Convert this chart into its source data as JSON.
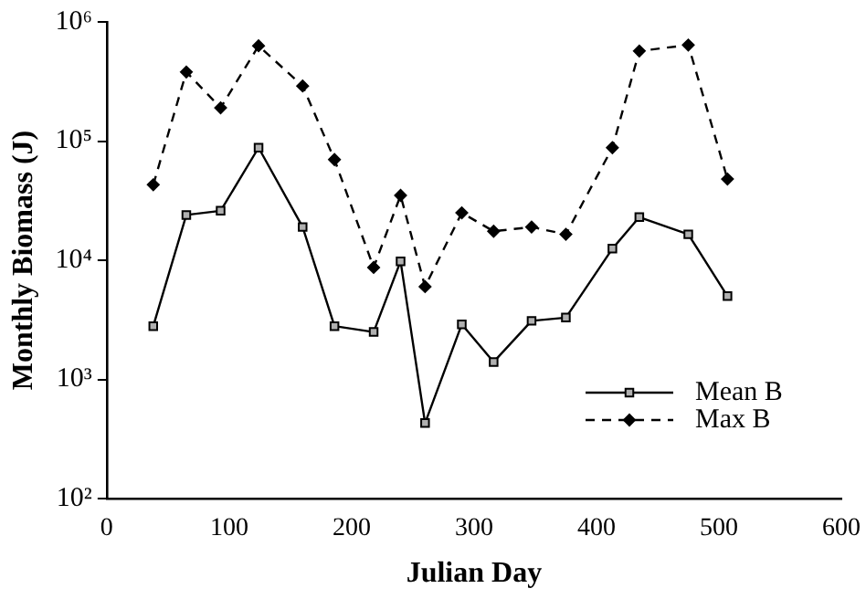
{
  "chart_data": {
    "type": "line",
    "xlabel": "Julian Day",
    "ylabel": "Monthly Biomass (J)",
    "xlim": [
      0,
      600
    ],
    "xticks": [
      0,
      100,
      200,
      300,
      400,
      500,
      600
    ],
    "ylim": [
      100,
      1000000
    ],
    "yticks": [
      {
        "value": 100,
        "label": "10²"
      },
      {
        "value": 1000,
        "label": "10³"
      },
      {
        "value": 10000,
        "label": "10⁴"
      },
      {
        "value": 100000,
        "label": "10⁵"
      },
      {
        "value": 1000000,
        "label": "10⁶"
      }
    ],
    "log": "y",
    "grid": false,
    "legend": "bottom right",
    "series": [
      {
        "name": "Mean B",
        "color": "#000000",
        "marker": "square",
        "line_style": "solid",
        "x": [
          38,
          65,
          93,
          124,
          160,
          186,
          218,
          240,
          260,
          290,
          316,
          347,
          375,
          413,
          435,
          475,
          507
        ],
        "values": [
          2800,
          24000,
          26000,
          88000,
          19000,
          2800,
          2500,
          9800,
          430,
          2900,
          1400,
          3100,
          3300,
          12500,
          23000,
          16500,
          5000
        ]
      },
      {
        "name": "Max B",
        "color": "#000000",
        "marker": "diamond",
        "line_style": "dashed",
        "x": [
          38,
          65,
          93,
          124,
          160,
          186,
          218,
          240,
          260,
          290,
          316,
          347,
          375,
          413,
          435,
          475,
          507
        ],
        "values": [
          43000,
          380000,
          190000,
          630000,
          290000,
          70000,
          8700,
          35000,
          6000,
          25000,
          17500,
          19000,
          16500,
          88000,
          570000,
          640000,
          48000
        ]
      }
    ]
  }
}
